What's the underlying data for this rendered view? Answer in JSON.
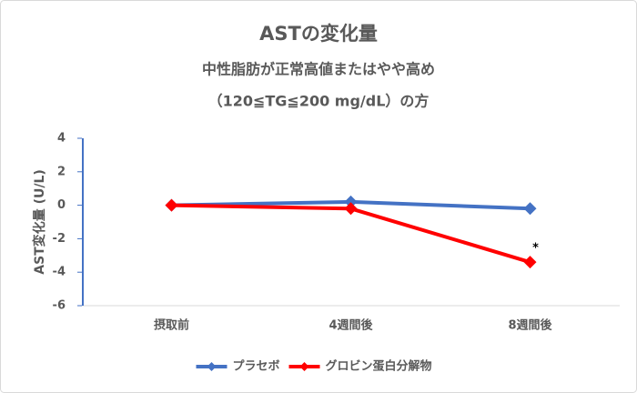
{
  "chart_data": {
    "type": "line",
    "title": "ASTの変化量",
    "subtitle": [
      "中性脂肪が正常高値またはやや高め",
      "（120≦TG≦200 mg/dL）の方"
    ],
    "y_label": "AST変化量 (U/L)",
    "categories": [
      "摂取前",
      "4週間後",
      "8週間後"
    ],
    "series": [
      {
        "name": "プラセボ",
        "color": "#4472c4",
        "values": [
          0,
          0.2,
          -0.2
        ]
      },
      {
        "name": "グロビン蛋白分解物",
        "color": "#ff0000",
        "values": [
          0,
          -0.2,
          -3.4
        ]
      }
    ],
    "annotation": "*",
    "ylim": [
      -6,
      4
    ],
    "yticks": [
      -6,
      -4,
      -2,
      0,
      2,
      4
    ],
    "grid": false,
    "legend": "bottom"
  }
}
